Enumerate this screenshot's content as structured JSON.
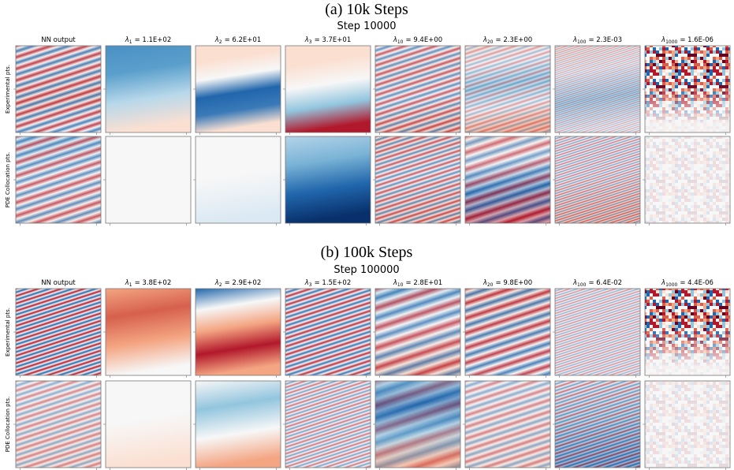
{
  "figures": [
    {
      "caption": "(a) 10k Steps",
      "title": "Step 10000",
      "rows": [
        "Experimental pts.",
        "PDE Collocation pts."
      ],
      "columns": [
        {
          "label": "NN output"
        },
        {
          "symbol": "λ",
          "subscript": "1",
          "value": "= 1.1E+02"
        },
        {
          "symbol": "λ",
          "subscript": "2",
          "value": "= 6.2E+01"
        },
        {
          "symbol": "λ",
          "subscript": "3",
          "value": "= 3.7E+01"
        },
        {
          "symbol": "λ",
          "subscript": "10",
          "value": "= 9.4E+00"
        },
        {
          "symbol": "λ",
          "subscript": "20",
          "value": "= 2.3E+00"
        },
        {
          "symbol": "λ",
          "subscript": "100",
          "value": "= 2.3E-03"
        },
        {
          "symbol": "λ",
          "subscript": "1000",
          "value": "= 1.6E-06"
        }
      ]
    },
    {
      "caption": "(b) 100k Steps",
      "title": "Step 100000",
      "rows": [
        "Experimental pts.",
        "PDE Collocation pts."
      ],
      "columns": [
        {
          "label": "NN output"
        },
        {
          "symbol": "λ",
          "subscript": "1",
          "value": "= 3.8E+02"
        },
        {
          "symbol": "λ",
          "subscript": "2",
          "value": "= 2.9E+02"
        },
        {
          "symbol": "λ",
          "subscript": "3",
          "value": "= 1.5E+02"
        },
        {
          "symbol": "λ",
          "subscript": "10",
          "value": "= 2.8E+01"
        },
        {
          "symbol": "λ",
          "subscript": "20",
          "value": "= 9.8E+00"
        },
        {
          "symbol": "λ",
          "subscript": "100",
          "value": "= 6.4E-02"
        },
        {
          "symbol": "λ",
          "subscript": "1000",
          "value": "= 4.4E-06"
        }
      ]
    }
  ]
}
